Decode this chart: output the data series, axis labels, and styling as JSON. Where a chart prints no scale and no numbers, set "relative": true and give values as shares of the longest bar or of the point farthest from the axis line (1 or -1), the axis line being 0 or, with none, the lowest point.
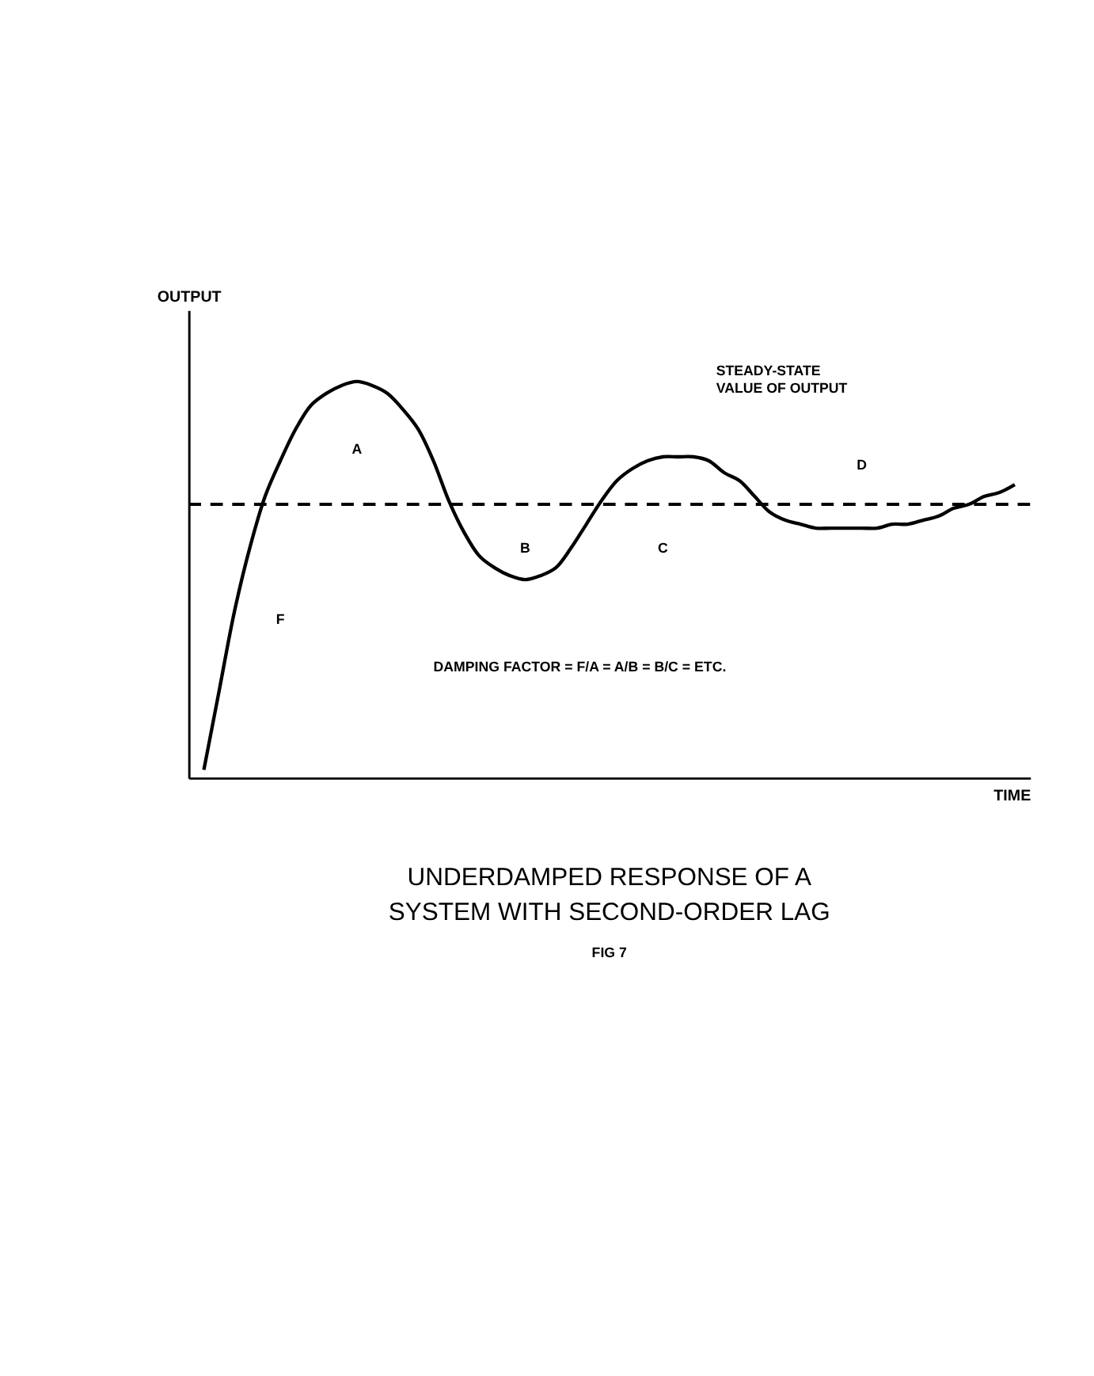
{
  "chart_data": {
    "type": "line",
    "relative": true,
    "title": "UNDERDAMPED RESPONSE OF A\nSYSTEM WITH SECOND-ORDER LAG",
    "subtitle": "FIG 7",
    "xlabel": "TIME",
    "ylabel": "OUTPUT",
    "categories": [
      null,
      null,
      null,
      null,
      null,
      null,
      null,
      null,
      null,
      null,
      null,
      null,
      null,
      null,
      null,
      null,
      null,
      null,
      null,
      null,
      null,
      null,
      null,
      null,
      null,
      null,
      null,
      null,
      null,
      null,
      null,
      null,
      null,
      null,
      null,
      null,
      null,
      null,
      null,
      null,
      null,
      null,
      null,
      null,
      null,
      null,
      null,
      null,
      null,
      null,
      null,
      null,
      null,
      null
    ],
    "series": [
      {
        "color": "#000000",
        "values": [
          0.02,
          0.22,
          0.42,
          0.58,
          0.71,
          0.8,
          0.88,
          0.94,
          0.97,
          0.99,
          1.0,
          0.99,
          0.97,
          0.93,
          0.88,
          0.8,
          0.7,
          0.62,
          0.56,
          0.53,
          0.51,
          0.5,
          0.51,
          0.53,
          0.58,
          0.64,
          0.7,
          0.75,
          0.78,
          0.8,
          0.81,
          0.81,
          0.81,
          0.8,
          0.77,
          0.75,
          0.71,
          0.67,
          0.65,
          0.64,
          0.63,
          0.63,
          0.63,
          0.63,
          0.63,
          0.64,
          0.64,
          0.65,
          0.66,
          0.68,
          0.69,
          0.71,
          0.72,
          0.74
        ]
      }
    ],
    "ref_lines": [
      {
        "axis": "y",
        "value": 0.69,
        "label": "STEADY-STATE\nVALUE OF OUTPUT",
        "color": "#000000",
        "line_style": "dashed"
      }
    ],
    "annotations": [
      "A",
      "B",
      "C",
      "D",
      "F",
      "DAMPING FACTOR = F/A = A/B = B/C = ETC."
    ],
    "marker": "none",
    "line_style": "solid"
  }
}
